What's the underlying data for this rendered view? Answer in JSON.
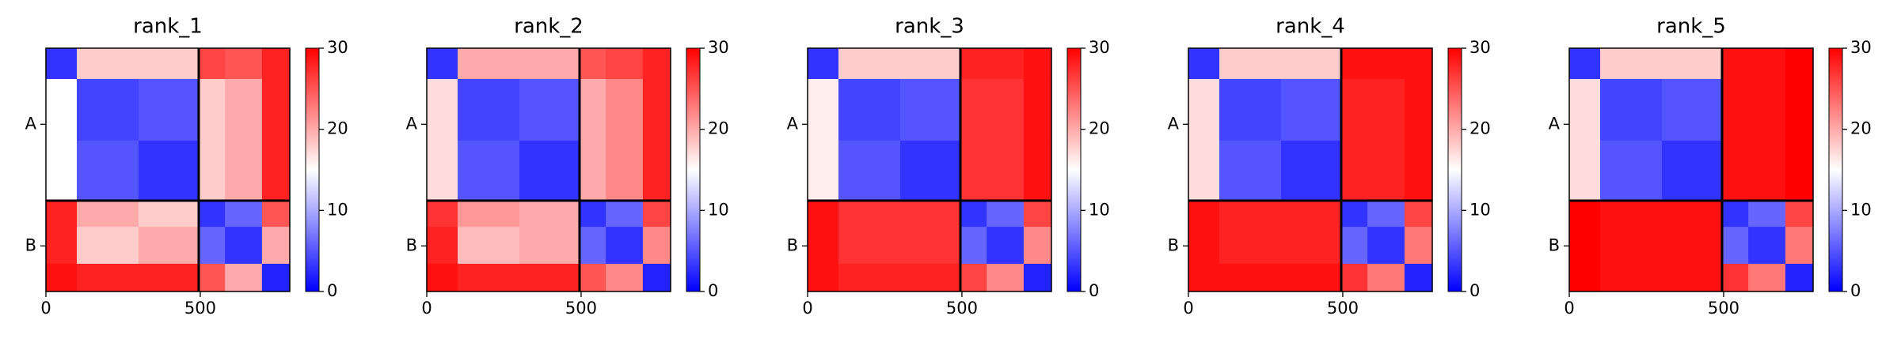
{
  "chart_data": [
    {
      "type": "heatmap",
      "title": "rank_1",
      "edges": [
        0,
        100,
        300,
        495,
        580,
        700,
        790
      ],
      "values": [
        [
          3,
          18,
          18,
          26,
          25,
          28
        ],
        [
          15,
          4,
          5,
          18,
          20,
          28
        ],
        [
          15,
          5,
          3,
          18,
          20,
          28
        ],
        [
          28,
          20,
          18,
          3,
          6,
          25
        ],
        [
          28,
          18,
          20,
          6,
          3,
          20
        ],
        [
          29,
          28,
          28,
          25,
          20,
          2
        ]
      ],
      "xlim": [
        0,
        790
      ],
      "ylim": [
        0,
        790
      ],
      "xticks": [
        0,
        500
      ],
      "yticks": [
        {
          "value": 247,
          "label": "A"
        },
        {
          "value": 642,
          "label": "B"
        }
      ],
      "chain_breaks": [
        495
      ],
      "clim": [
        0,
        30
      ],
      "cticks": [
        0,
        10,
        20,
        30
      ],
      "colors": [
        "#0000ff",
        "#ffffff",
        "#ff0000"
      ]
    },
    {
      "type": "heatmap",
      "title": "rank_2",
      "edges": [
        0,
        100,
        300,
        495,
        580,
        700,
        790
      ],
      "values": [
        [
          3,
          20,
          20,
          25,
          26,
          28
        ],
        [
          17,
          4,
          5,
          20,
          22,
          28
        ],
        [
          17,
          5,
          3,
          20,
          22,
          28
        ],
        [
          27,
          21,
          20,
          3,
          6,
          26
        ],
        [
          28,
          19,
          20,
          6,
          3,
          22
        ],
        [
          29,
          28,
          28,
          25,
          22,
          2
        ]
      ],
      "xlim": [
        0,
        790
      ],
      "ylim": [
        0,
        790
      ],
      "xticks": [
        0,
        500
      ],
      "yticks": [
        {
          "value": 247,
          "label": "A"
        },
        {
          "value": 642,
          "label": "B"
        }
      ],
      "chain_breaks": [
        495
      ],
      "clim": [
        0,
        30
      ],
      "cticks": [
        0,
        10,
        20,
        30
      ],
      "colors": [
        "#0000ff",
        "#ffffff",
        "#ff0000"
      ]
    },
    {
      "type": "heatmap",
      "title": "rank_3",
      "edges": [
        0,
        100,
        300,
        495,
        580,
        700,
        790
      ],
      "values": [
        [
          3,
          18,
          18,
          28,
          28,
          29
        ],
        [
          16,
          4,
          5,
          27,
          27,
          29
        ],
        [
          16,
          5,
          3,
          27,
          27,
          29
        ],
        [
          29,
          27,
          27,
          3,
          6,
          26
        ],
        [
          29,
          27,
          27,
          6,
          3,
          22
        ],
        [
          29,
          28,
          28,
          26,
          22,
          2
        ]
      ],
      "xlim": [
        0,
        790
      ],
      "ylim": [
        0,
        790
      ],
      "xticks": [
        0,
        500
      ],
      "yticks": [
        {
          "value": 247,
          "label": "A"
        },
        {
          "value": 642,
          "label": "B"
        }
      ],
      "chain_breaks": [
        495
      ],
      "clim": [
        0,
        30
      ],
      "cticks": [
        0,
        10,
        20,
        30
      ],
      "colors": [
        "#0000ff",
        "#ffffff",
        "#ff0000"
      ]
    },
    {
      "type": "heatmap",
      "title": "rank_4",
      "edges": [
        0,
        100,
        300,
        495,
        580,
        700,
        790
      ],
      "values": [
        [
          3,
          18,
          18,
          29,
          29,
          29
        ],
        [
          17,
          4,
          5,
          28,
          28,
          29
        ],
        [
          17,
          5,
          3,
          28,
          28,
          29
        ],
        [
          29,
          28,
          28,
          3,
          6,
          26
        ],
        [
          29,
          28,
          28,
          6,
          3,
          23
        ],
        [
          29,
          29,
          29,
          27,
          23,
          2
        ]
      ],
      "xlim": [
        0,
        790
      ],
      "ylim": [
        0,
        790
      ],
      "xticks": [
        0,
        500
      ],
      "yticks": [
        {
          "value": 247,
          "label": "A"
        },
        {
          "value": 642,
          "label": "B"
        }
      ],
      "chain_breaks": [
        495
      ],
      "clim": [
        0,
        30
      ],
      "cticks": [
        0,
        10,
        20,
        30
      ],
      "colors": [
        "#0000ff",
        "#ffffff",
        "#ff0000"
      ]
    },
    {
      "type": "heatmap",
      "title": "rank_5",
      "edges": [
        0,
        100,
        300,
        495,
        580,
        700,
        790
      ],
      "values": [
        [
          3,
          18,
          18,
          29,
          29,
          30
        ],
        [
          17,
          4,
          5,
          29,
          29,
          30
        ],
        [
          17,
          5,
          3,
          29,
          29,
          30
        ],
        [
          30,
          29,
          29,
          3,
          6,
          26
        ],
        [
          30,
          29,
          29,
          6,
          3,
          23
        ],
        [
          30,
          29,
          29,
          27,
          23,
          2
        ]
      ],
      "xlim": [
        0,
        790
      ],
      "ylim": [
        0,
        790
      ],
      "xticks": [
        0,
        500
      ],
      "yticks": [
        {
          "value": 247,
          "label": "A"
        },
        {
          "value": 642,
          "label": "B"
        }
      ],
      "chain_breaks": [
        495
      ],
      "clim": [
        0,
        30
      ],
      "cticks": [
        0,
        10,
        20,
        30
      ],
      "colors": [
        "#0000ff",
        "#ffffff",
        "#ff0000"
      ]
    }
  ]
}
